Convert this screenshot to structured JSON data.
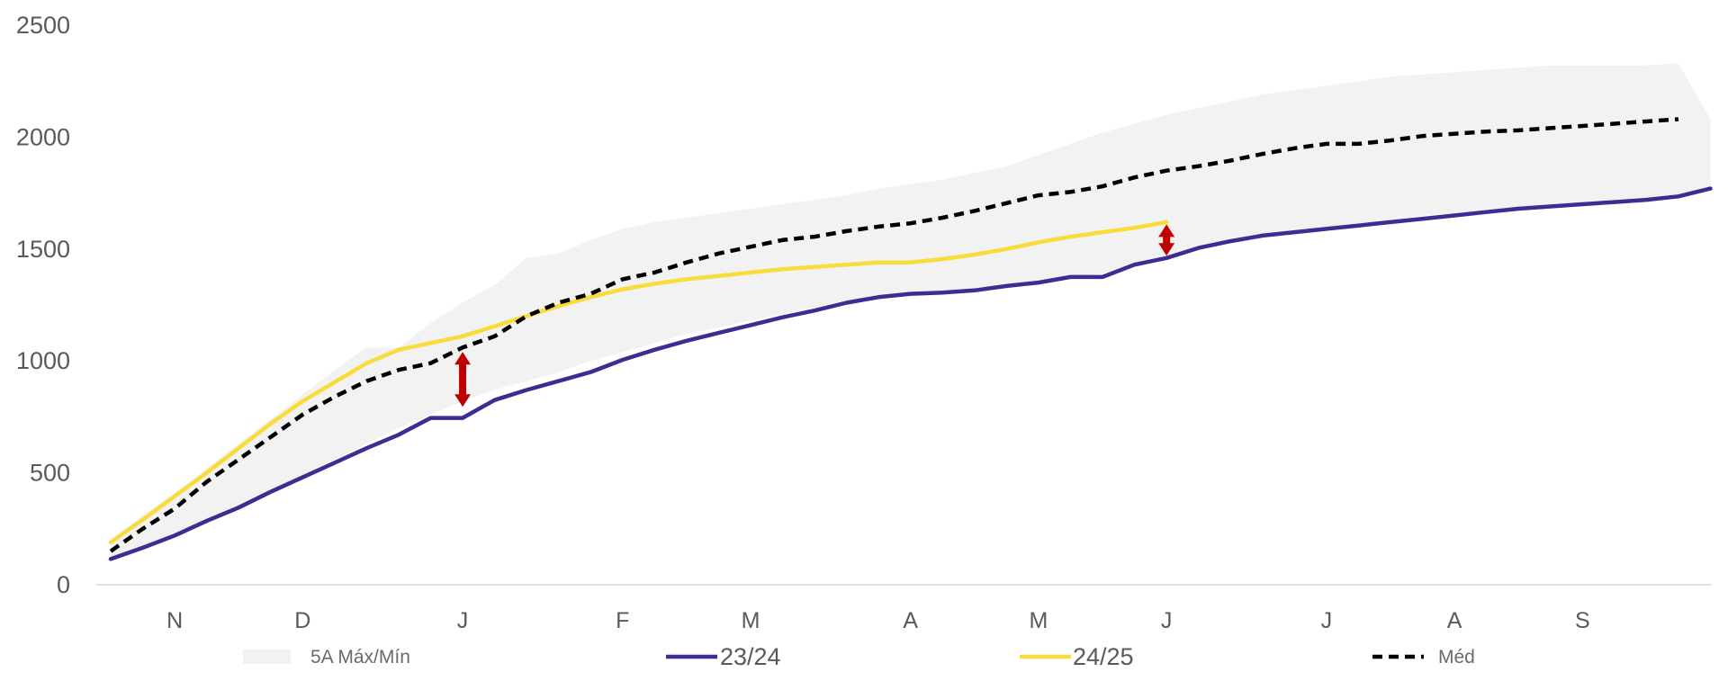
{
  "chart_data": {
    "type": "line",
    "ylim": [
      0,
      2500
    ],
    "yticks": [
      "0",
      "500",
      "1000",
      "1500",
      "2000",
      "2500"
    ],
    "x_labels": [
      "N",
      "D",
      "J",
      "F",
      "M",
      "A",
      "M",
      "J",
      "J",
      "A",
      "S"
    ],
    "x_label_weeks": [
      2,
      6,
      11,
      16,
      20,
      25,
      29,
      33,
      38,
      42,
      46
    ],
    "grid": false,
    "legend_position": "bottom",
    "band": {
      "name": "5A Máx/Mín",
      "color": "#f2f2f2",
      "x": [
        0,
        1,
        2,
        3,
        4,
        5,
        6,
        7,
        8,
        9,
        10,
        11,
        12,
        13,
        14,
        15,
        16,
        17,
        18,
        19,
        20,
        21,
        22,
        23,
        24,
        25,
        26,
        27,
        28,
        29,
        30,
        31,
        32,
        33,
        34,
        35,
        36,
        37,
        38,
        39,
        40,
        41,
        42,
        43,
        44,
        45,
        46,
        47,
        48,
        49,
        50
      ],
      "upper": [
        200,
        310,
        410,
        520,
        630,
        740,
        850,
        960,
        1060,
        1060,
        1170,
        1260,
        1340,
        1460,
        1480,
        1540,
        1590,
        1620,
        1640,
        1660,
        1680,
        1700,
        1720,
        1740,
        1770,
        1790,
        1810,
        1840,
        1870,
        1920,
        1970,
        2020,
        2060,
        2100,
        2130,
        2160,
        2190,
        2210,
        2230,
        2250,
        2270,
        2280,
        2290,
        2300,
        2310,
        2320,
        2320,
        2320,
        2320,
        2330,
        2080
      ],
      "lower": [
        110,
        170,
        230,
        290,
        350,
        420,
        490,
        560,
        630,
        700,
        760,
        820,
        870,
        910,
        950,
        1000,
        1040,
        1080,
        1120,
        1150,
        1180,
        1210,
        1240,
        1270,
        1290,
        1300,
        1310,
        1320,
        1330,
        1350,
        1370,
        1390,
        1430,
        1460,
        1500,
        1530,
        1550,
        1570,
        1590,
        1610,
        1630,
        1650,
        1660,
        1670,
        1680,
        1690,
        1700,
        1710,
        1720,
        1740,
        1780
      ]
    },
    "series": [
      {
        "name": "23/24",
        "color": "#3a2e92",
        "style": "solid",
        "x": [
          0,
          1,
          2,
          3,
          4,
          5,
          6,
          7,
          8,
          9,
          10,
          11,
          12,
          13,
          14,
          15,
          16,
          17,
          18,
          19,
          20,
          21,
          22,
          23,
          24,
          25,
          26,
          27,
          28,
          29,
          30,
          31,
          32,
          33,
          34,
          35,
          36,
          37,
          38,
          39,
          40,
          41,
          42,
          43,
          44,
          45,
          46,
          47,
          48,
          49,
          50
        ],
        "values": [
          115,
          165,
          220,
          285,
          345,
          415,
          480,
          545,
          610,
          670,
          745,
          745,
          825,
          870,
          910,
          950,
          1005,
          1050,
          1090,
          1125,
          1160,
          1195,
          1225,
          1260,
          1285,
          1300,
          1305,
          1315,
          1335,
          1350,
          1375,
          1375,
          1430,
          1460,
          1505,
          1535,
          1560,
          1575,
          1590,
          1605,
          1620,
          1635,
          1650,
          1665,
          1680,
          1690,
          1700,
          1710,
          1720,
          1735,
          1770
        ]
      },
      {
        "name": "24/25",
        "color": "#f9dc3a",
        "style": "solid",
        "x": [
          0,
          1,
          2,
          3,
          4,
          5,
          6,
          7,
          8,
          9,
          10,
          11,
          12,
          13,
          14,
          15,
          16,
          17,
          18,
          19,
          20,
          21,
          22,
          23,
          24,
          25,
          26,
          27,
          28,
          29,
          30,
          31,
          32,
          33
        ],
        "values": [
          190,
          290,
          395,
          500,
          610,
          720,
          820,
          905,
          990,
          1050,
          1080,
          1110,
          1155,
          1200,
          1245,
          1285,
          1320,
          1345,
          1365,
          1380,
          1395,
          1410,
          1420,
          1430,
          1440,
          1440,
          1455,
          1475,
          1500,
          1530,
          1555,
          1575,
          1595,
          1620
        ]
      },
      {
        "name": "Méd",
        "color": "#000000",
        "style": "dashed",
        "x": [
          0,
          1,
          2,
          3,
          4,
          5,
          6,
          7,
          8,
          9,
          10,
          11,
          12,
          13,
          14,
          15,
          16,
          17,
          18,
          19,
          20,
          21,
          22,
          23,
          24,
          25,
          26,
          27,
          28,
          29,
          30,
          31,
          32,
          33,
          34,
          35,
          36,
          37,
          38,
          39,
          40,
          41,
          42,
          43,
          44,
          45,
          46,
          47,
          48,
          49
        ],
        "values": [
          150,
          250,
          340,
          460,
          560,
          660,
          760,
          840,
          910,
          960,
          990,
          1060,
          1110,
          1200,
          1260,
          1300,
          1365,
          1395,
          1440,
          1480,
          1510,
          1540,
          1555,
          1580,
          1600,
          1615,
          1640,
          1670,
          1705,
          1740,
          1755,
          1780,
          1820,
          1850,
          1870,
          1895,
          1925,
          1950,
          1970,
          1970,
          1985,
          2005,
          2015,
          2025,
          2030,
          2040,
          2050,
          2060,
          2070,
          2080
        ]
      }
    ],
    "annotations": [
      {
        "type": "double-arrow",
        "color": "#c00000",
        "x": 11,
        "y_from": 795,
        "y_to": 1040
      },
      {
        "type": "double-arrow",
        "color": "#c00000",
        "x": 33,
        "y_from": 1470,
        "y_to": 1610
      }
    ]
  }
}
